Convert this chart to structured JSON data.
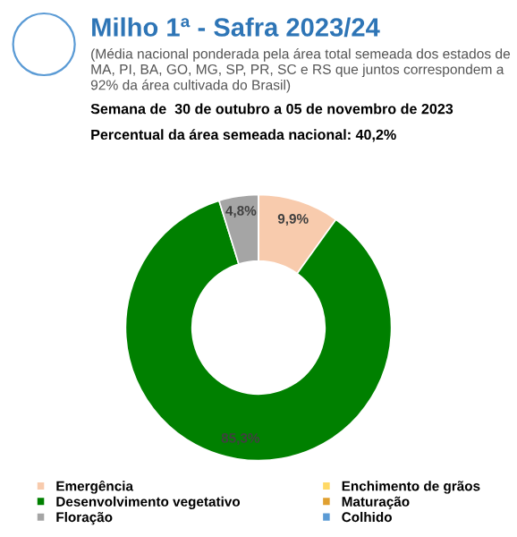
{
  "chart_data": {
    "type": "donut",
    "title": "Milho 1ª - Safra 2023/24",
    "subtitle": "(Média nacional ponderada pela área total semeada dos estados de MA, PI, BA, GO, MG, SP, PR, SC e RS que juntos correspondem a 92% da área cultivada do Brasil)",
    "annotations": [
      "Semana de  30 de outubro a 05 de novembro de 2023",
      "Percentual da área semeada nacional: 40,2%"
    ],
    "categories": [
      "Emergência",
      "Desenvolvimento vegetativo",
      "Floração",
      "Enchimento de grãos",
      "Maturação",
      "Colhido"
    ],
    "values": [
      9.9,
      85.3,
      4.8,
      0,
      0,
      0
    ],
    "colors": [
      "#f8cbad",
      "#008000",
      "#a5a5a5",
      "#ffd966",
      "#e0a030",
      "#5b9bd5"
    ],
    "value_labels": [
      "9,9%",
      "85,3%",
      "4,8%",
      null,
      null,
      null
    ],
    "legend": "bottom"
  }
}
